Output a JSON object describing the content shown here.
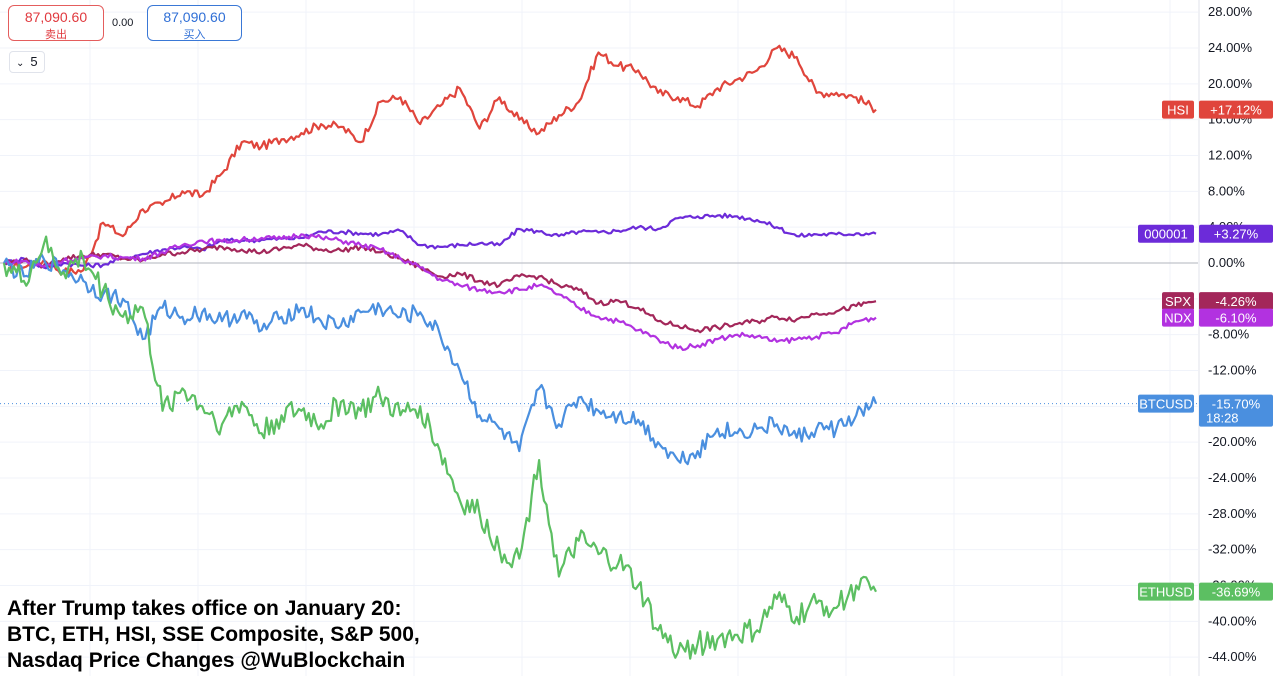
{
  "toolbar": {
    "sell_price": "87,090.60",
    "sell_label": "卖出",
    "spread": "0.00",
    "buy_price": "87,090.60",
    "buy_label": "买入",
    "interval": "5",
    "interval_icon": "chevron-down-icon"
  },
  "caption": [
    "After Trump takes office on January 20:",
    "BTC, ETH, HSI, SSE Composite, S&P 500,",
    "Nasdaq Price Changes @WuBlockchain"
  ],
  "chart_data": {
    "type": "line",
    "y_unit": "%",
    "ylim": [
      -46,
      30
    ],
    "yticks": [
      "28.00%",
      "24.00%",
      "20.00%",
      "16.00%",
      "12.00%",
      "8.00%",
      "4.00%",
      "0.00%",
      "-4.00%",
      "-8.00%",
      "-12.00%",
      "-16.00%",
      "-20.00%",
      "-24.00%",
      "-28.00%",
      "-32.00%",
      "-36.00%",
      "-40.00%",
      "-44.00%"
    ],
    "grid": true,
    "series": [
      {
        "name": "HSI",
        "color": "#e0453c",
        "last_label": "+17.12%",
        "values": [
          0.0,
          -0.5,
          0.3,
          -1.0,
          -0.8,
          4.5,
          3.0,
          6.0,
          6.5,
          8.0,
          7.5,
          10.0,
          13.5,
          13.0,
          13.8,
          14.5,
          15.5,
          15.2,
          13.5,
          18.0,
          18.5,
          15.5,
          17.5,
          19.5,
          15.0,
          18.5,
          16.0,
          14.5,
          16.5,
          18.0,
          23.5,
          22.0,
          21.5,
          19.0,
          18.5,
          17.5,
          19.5,
          20.5,
          21.5,
          24.0,
          23.0,
          19.0,
          19.0,
          18.5,
          17.12
        ]
      },
      {
        "name": "000001",
        "color": "#6c2bd9",
        "last_label": "+3.27%",
        "values": [
          0.0,
          0.5,
          -0.5,
          0.0,
          -0.3,
          -0.2,
          0.5,
          1.0,
          1.5,
          1.8,
          1.5,
          2.5,
          2.5,
          2.6,
          2.7,
          2.8,
          3.5,
          3.5,
          3.3,
          3.2,
          3.6,
          2.0,
          1.8,
          2.0,
          2.2,
          2.0,
          3.8,
          3.5,
          3.0,
          3.5,
          3.4,
          3.6,
          4.0,
          3.8,
          5.0,
          5.2,
          5.3,
          5.2,
          4.8,
          4.0,
          3.0,
          3.2,
          3.2,
          3.3,
          3.27
        ]
      },
      {
        "name": "SPX",
        "color": "#a3275a",
        "last_label": "-4.26%",
        "values": [
          0.0,
          0.3,
          -0.3,
          0.5,
          0.8,
          1.0,
          0.5,
          0.3,
          1.0,
          1.2,
          1.5,
          1.8,
          1.5,
          1.2,
          1.6,
          2.0,
          1.5,
          1.4,
          1.8,
          1.2,
          0.5,
          -0.5,
          -1.5,
          -1.2,
          -2.0,
          -2.5,
          -1.5,
          -1.5,
          -2.5,
          -3.0,
          -4.5,
          -4.2,
          -5.0,
          -6.5,
          -7.0,
          -7.5,
          -7.2,
          -6.8,
          -6.5,
          -6.0,
          -6.3,
          -5.6,
          -5.4,
          -4.8,
          -4.26
        ]
      },
      {
        "name": "NDX",
        "color": "#b232e0",
        "last_label": "-6.10%",
        "values": [
          0.0,
          0.2,
          -0.4,
          0.3,
          0.5,
          0.8,
          0.6,
          0.5,
          1.2,
          2.0,
          2.5,
          2.4,
          2.6,
          2.8,
          2.7,
          3.2,
          2.8,
          2.5,
          2.0,
          1.5,
          0.5,
          -0.5,
          -1.8,
          -2.5,
          -3.0,
          -3.2,
          -3.0,
          -2.5,
          -3.5,
          -5.0,
          -6.0,
          -6.5,
          -7.5,
          -8.5,
          -9.5,
          -9.2,
          -8.5,
          -8.0,
          -8.2,
          -8.8,
          -8.5,
          -8.2,
          -7.8,
          -6.5,
          -6.1
        ]
      },
      {
        "name": "BTCUSD",
        "color": "#4a8fdf",
        "last_label": "-15.70%",
        "values": [
          0.0,
          -1.5,
          0.5,
          -0.8,
          -2.0,
          -3.5,
          -4.0,
          -8.5,
          -5.0,
          -6.0,
          -5.5,
          -6.5,
          -5.5,
          -7.5,
          -6.0,
          -5.0,
          -6.5,
          -7.0,
          -5.5,
          -5.0,
          -6.0,
          -5.5,
          -8.0,
          -12.0,
          -17.0,
          -18.5,
          -21.0,
          -14.0,
          -18.0,
          -15.0,
          -16.5,
          -17.0,
          -17.5,
          -20.0,
          -22.0,
          -21.0,
          -18.5,
          -19.0,
          -18.5,
          -18.0,
          -19.5,
          -18.5,
          -18.5,
          -17.0,
          -15.7
        ]
      },
      {
        "name": "ETHUSD",
        "color": "#5cbf62",
        "last_label": "-36.69%",
        "values": [
          0.0,
          -2.0,
          2.0,
          -1.0,
          0.5,
          -3.0,
          -6.0,
          -5.0,
          -16.5,
          -14.0,
          -16.0,
          -18.0,
          -15.5,
          -19.0,
          -17.0,
          -16.5,
          -18.0,
          -15.5,
          -16.5,
          -15.0,
          -17.0,
          -16.0,
          -21.0,
          -26.5,
          -28.0,
          -32.0,
          -33.0,
          -22.0,
          -35.0,
          -31.0,
          -32.5,
          -33.5,
          -36.0,
          -41.0,
          -43.5,
          -42.5,
          -42.0,
          -41.5,
          -41.0,
          -37.5,
          -39.5,
          -38.0,
          -38.5,
          -36.0,
          -36.69
        ]
      }
    ],
    "last_time": "18:28"
  }
}
